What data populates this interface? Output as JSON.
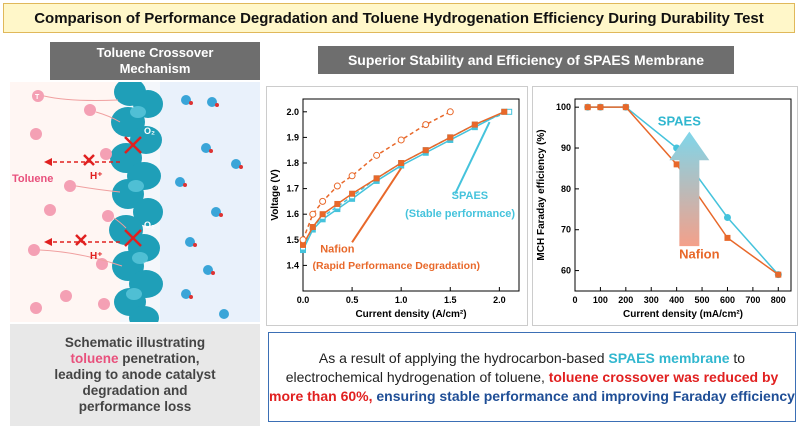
{
  "title": "Comparison of Performance Degradation and Toluene Hydrogenation Efficiency During Durability Test",
  "left_panel": {
    "header_line1": "Toluene Crossover",
    "header_line2": "Mechanism",
    "toluene_label": "Toluene",
    "proton_label": "H⁺",
    "oxygen_label": "O₂",
    "toluene_symbol": "T",
    "caption_line1": "Schematic illustrating",
    "caption_line2a": "toluene",
    "caption_line2b": " penetration,",
    "caption_line3": "leading to anode catalyst",
    "caption_line4": "degradation and",
    "caption_line5": "performance loss"
  },
  "right_header": "Superior Stability and Efficiency of SPAES Membrane",
  "colors": {
    "nafion": "#e8682a",
    "spaes": "#45c3dc",
    "title_bg": "#fff7c9",
    "header_bg": "#6e6e6e"
  },
  "chart_data": [
    {
      "type": "line",
      "xlabel": "Current density (A/cm²)",
      "ylabel": "Voltage (V)",
      "xlim": [
        0.0,
        2.2
      ],
      "ylim": [
        1.3,
        2.05
      ],
      "x_ticks": [
        "0.0",
        "0.5",
        "1.0",
        "1.5",
        "2.0"
      ],
      "y_ticks": [
        "1.4",
        "1.5",
        "1.6",
        "1.7",
        "1.8",
        "1.9",
        "2.0"
      ],
      "grid": false,
      "annotations": {
        "spaes_title": "SPAES",
        "spaes_sub": "(Stable performance)",
        "nafion_title": "Nafion",
        "nafion_sub": "(Rapid Performance Degradation)"
      },
      "series": [
        {
          "name": "SPAES",
          "style": "solid",
          "marker": "square-filled",
          "x": [
            0.0,
            0.1,
            0.2,
            0.35,
            0.5,
            0.75,
            1.0,
            1.25,
            1.5,
            1.75,
            2.05
          ],
          "y": [
            1.46,
            1.54,
            1.58,
            1.62,
            1.66,
            1.73,
            1.79,
            1.84,
            1.89,
            1.94,
            2.0
          ]
        },
        {
          "name": "SPAES",
          "style": "dashed",
          "marker": "square-open",
          "x": [
            0.0,
            0.1,
            0.2,
            0.35,
            0.5,
            0.75,
            1.0,
            1.25,
            1.5,
            1.75,
            2.1
          ],
          "y": [
            1.47,
            1.55,
            1.59,
            1.63,
            1.67,
            1.74,
            1.8,
            1.85,
            1.9,
            1.95,
            2.0
          ]
        },
        {
          "name": "Nafion",
          "style": "solid",
          "marker": "square-filled",
          "x": [
            0.0,
            0.1,
            0.2,
            0.35,
            0.5,
            0.75,
            1.0,
            1.25,
            1.5,
            1.75,
            2.05
          ],
          "y": [
            1.48,
            1.55,
            1.6,
            1.64,
            1.68,
            1.74,
            1.8,
            1.85,
            1.9,
            1.95,
            2.0
          ]
        },
        {
          "name": "Nafion",
          "style": "dashed",
          "marker": "circle-open",
          "x": [
            0.0,
            0.1,
            0.2,
            0.35,
            0.5,
            0.75,
            1.0,
            1.25,
            1.5
          ],
          "y": [
            1.5,
            1.6,
            1.65,
            1.71,
            1.75,
            1.83,
            1.89,
            1.95,
            2.0
          ]
        }
      ]
    },
    {
      "type": "line",
      "xlabel": "Current density (mA/cm²)",
      "ylabel": "MCH Faraday efficiency (%)",
      "xlim": [
        0,
        850
      ],
      "ylim": [
        55,
        102
      ],
      "x_ticks": [
        "0",
        "100",
        "200",
        "300",
        "400",
        "500",
        "600",
        "700",
        "800"
      ],
      "y_ticks": [
        "60",
        "70",
        "80",
        "90",
        "100"
      ],
      "grid": false,
      "annotations": {
        "spaes_label": "SPAES",
        "nafion_label": "Nafion"
      },
      "series": [
        {
          "name": "SPAES",
          "marker": "circle-filled",
          "x": [
            50,
            100,
            200,
            400,
            600,
            800
          ],
          "y": [
            100,
            100,
            100,
            90,
            73,
            59
          ]
        },
        {
          "name": "Nafion",
          "marker": "square-filled",
          "x": [
            50,
            100,
            200,
            400,
            600,
            800
          ],
          "y": [
            100,
            100,
            100,
            86,
            68,
            59
          ]
        }
      ]
    }
  ],
  "summary": {
    "p1": "As a result of applying the hydrocarbon-based ",
    "p2": "SPAES membrane",
    "p3": " to electrochemical hydrogenation of toluene, ",
    "p4": "toluene crossover was reduced by more than 60%,",
    "p5": " ensuring stable performance and improving Faraday efficiency"
  }
}
